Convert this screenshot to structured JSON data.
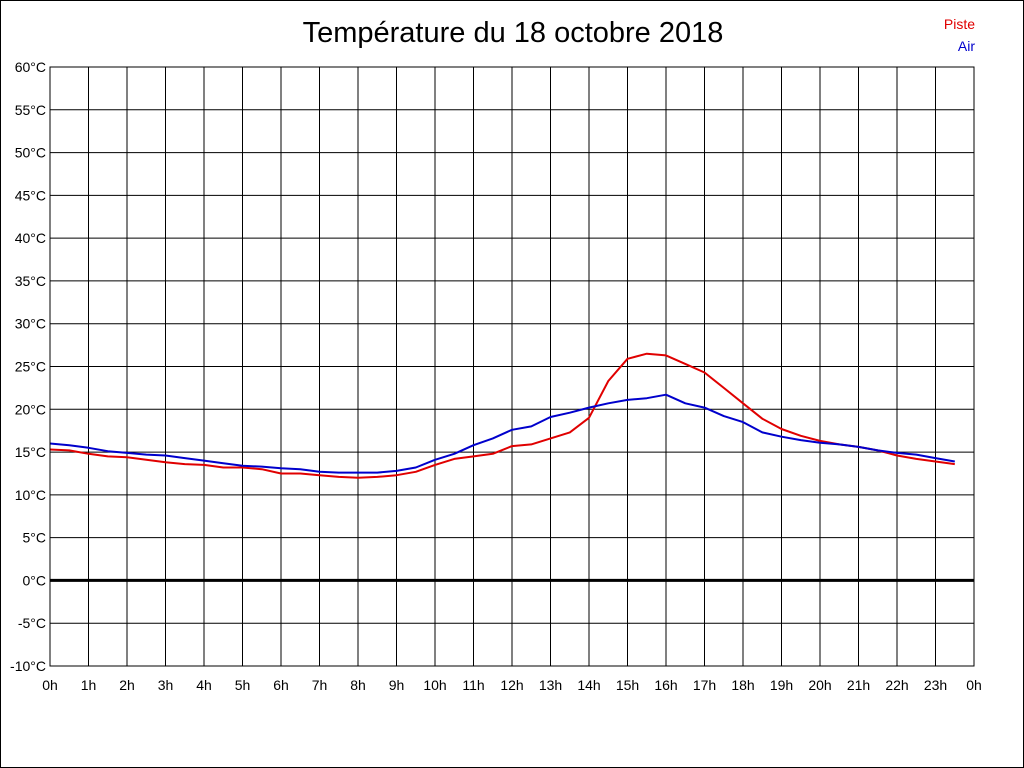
{
  "chart_data": {
    "type": "line",
    "title": "Température du 18 octobre 2018",
    "xlabel": "",
    "ylabel": "",
    "x_ticks": [
      "0h",
      "1h",
      "2h",
      "3h",
      "4h",
      "5h",
      "6h",
      "7h",
      "8h",
      "9h",
      "10h",
      "11h",
      "12h",
      "13h",
      "14h",
      "15h",
      "16h",
      "17h",
      "18h",
      "19h",
      "20h",
      "21h",
      "22h",
      "23h",
      "0h"
    ],
    "y_ticks": [
      "60°C",
      "55°C",
      "50°C",
      "45°C",
      "40°C",
      "35°C",
      "30°C",
      "25°C",
      "20°C",
      "15°C",
      "10°C",
      "5°C",
      "0°C",
      "-5°C",
      "-10°C"
    ],
    "xlim": [
      0,
      24
    ],
    "ylim": [
      -10,
      60
    ],
    "grid": true,
    "legend_position": "top-right",
    "series": [
      {
        "name": "Piste",
        "color": "#e00000",
        "x": [
          0,
          0.5,
          1,
          1.5,
          2,
          2.5,
          3,
          3.5,
          4,
          4.5,
          5,
          5.5,
          6,
          6.5,
          7,
          7.5,
          8,
          8.5,
          9,
          9.5,
          10,
          10.5,
          11,
          11.5,
          12,
          12.5,
          13,
          13.5,
          14,
          14.5,
          15,
          15.5,
          16,
          16.5,
          17,
          17.5,
          18,
          18.5,
          19,
          19.5,
          20,
          20.5,
          21,
          21.5,
          22,
          22.5,
          23,
          23.5
        ],
        "values": [
          15.3,
          15.2,
          14.8,
          14.5,
          14.4,
          14.1,
          13.8,
          13.6,
          13.5,
          13.2,
          13.2,
          13.0,
          12.5,
          12.5,
          12.3,
          12.1,
          12.0,
          12.1,
          12.3,
          12.7,
          13.5,
          14.2,
          14.5,
          14.8,
          15.7,
          15.9,
          16.6,
          17.3,
          19.0,
          23.3,
          25.9,
          26.5,
          26.3,
          25.3,
          24.3,
          22.5,
          20.7,
          18.9,
          17.7,
          16.9,
          16.3,
          15.9,
          15.6,
          15.2,
          14.6,
          14.2,
          13.9,
          13.6
        ]
      },
      {
        "name": "Air",
        "color": "#0000cc",
        "x": [
          0,
          0.5,
          1,
          1.5,
          2,
          2.5,
          3,
          3.5,
          4,
          4.5,
          5,
          5.5,
          6,
          6.5,
          7,
          7.5,
          8,
          8.5,
          9,
          9.5,
          10,
          10.5,
          11,
          11.5,
          12,
          12.5,
          13,
          13.5,
          14,
          14.5,
          15,
          15.5,
          16,
          16.5,
          17,
          17.5,
          18,
          18.5,
          19,
          19.5,
          20,
          20.5,
          21,
          21.5,
          22,
          22.5,
          23,
          23.5
        ],
        "values": [
          16.0,
          15.8,
          15.5,
          15.1,
          14.9,
          14.7,
          14.6,
          14.3,
          14.0,
          13.7,
          13.4,
          13.3,
          13.1,
          13.0,
          12.7,
          12.6,
          12.6,
          12.6,
          12.8,
          13.2,
          14.1,
          14.8,
          15.8,
          16.6,
          17.6,
          18.0,
          19.1,
          19.6,
          20.2,
          20.7,
          21.1,
          21.3,
          21.7,
          20.7,
          20.2,
          19.2,
          18.5,
          17.3,
          16.8,
          16.4,
          16.1,
          15.9,
          15.6,
          15.2,
          14.9,
          14.7,
          14.3,
          13.9
        ]
      }
    ]
  }
}
